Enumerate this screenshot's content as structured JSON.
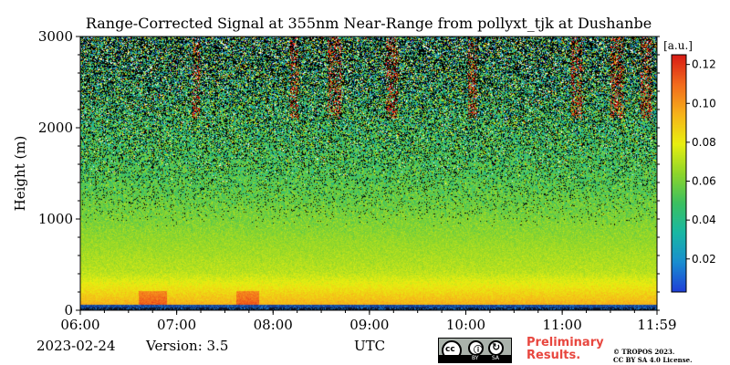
{
  "chart_data": {
    "type": "heatmap",
    "title": "Range-Corrected Signal at 355nm Near-Range from pollyxt_tjk at Dushanbe",
    "xlabel": "UTC",
    "ylabel": "Height (m)",
    "x_ticks": [
      "06:00",
      "07:00",
      "08:00",
      "09:00",
      "10:00",
      "11:00",
      "11:59"
    ],
    "y_ticks": [
      0,
      1000,
      2000,
      3000
    ],
    "xlim": [
      "06:00",
      "11:59"
    ],
    "ylim": [
      0,
      3000
    ],
    "colorbar": {
      "unit": "[a.u.]",
      "ticks": [
        0.02,
        0.04,
        0.06,
        0.08,
        0.1,
        0.12
      ],
      "tick_labels": [
        "0.02",
        "0.04",
        "0.06",
        "0.08",
        "0.10",
        "0.12"
      ],
      "range": [
        0.003,
        0.125
      ],
      "colormap": [
        "#1f3fd8",
        "#1a8ed0",
        "#19b8a4",
        "#3cc060",
        "#8fd62a",
        "#e9ef10",
        "#f7b21a",
        "#f26a1c",
        "#d81a15"
      ]
    }
  },
  "footer": {
    "date": "2023-02-24",
    "version": "Version: 3.5",
    "preliminary_line1": "Preliminary",
    "preliminary_line2": "Results.",
    "copyright_line1": "© TROPOS 2023.",
    "copyright_line2": "CC BY SA 4.0 License.",
    "cc_badge": {
      "by": "BY",
      "sa": "SA"
    }
  }
}
